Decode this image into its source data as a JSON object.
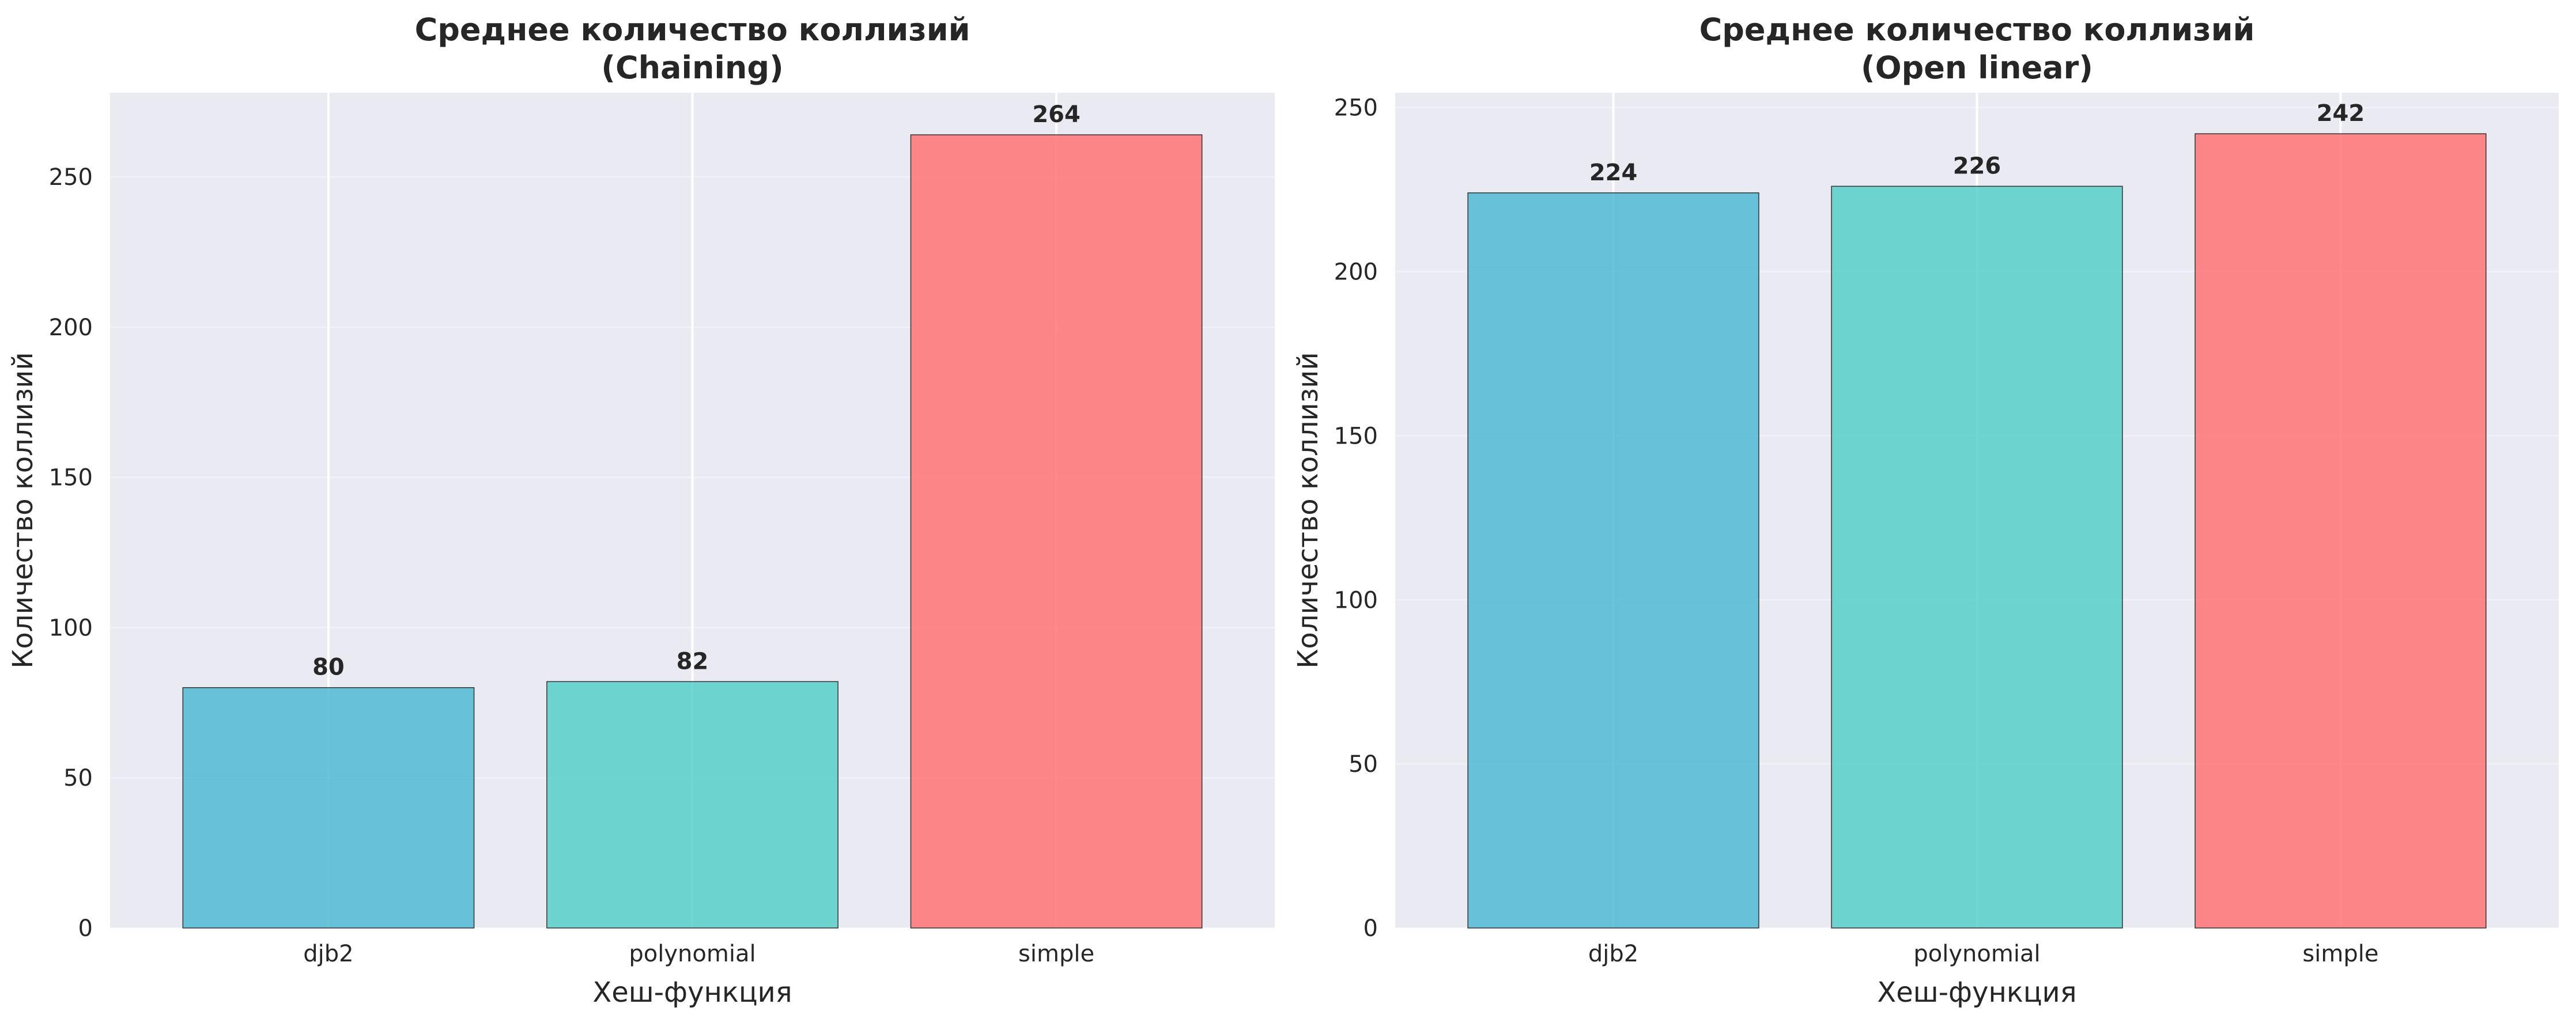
{
  "chart_data": [
    {
      "type": "bar",
      "title": [
        "Среднее количество коллизий",
        "(Chaining)"
      ],
      "xlabel": "Хеш-функция",
      "ylabel": "Количество коллизий",
      "categories": [
        "djb2",
        "polynomial",
        "simple"
      ],
      "values": [
        80,
        82,
        264
      ],
      "value_labels": [
        "80",
        "82",
        "264"
      ],
      "ylim": [
        0,
        278
      ],
      "yticks": [
        0,
        50,
        100,
        150,
        200,
        250
      ],
      "colors": [
        "#45b7d1",
        "#4ecdc4",
        "#ff6b6b"
      ],
      "grid": true
    },
    {
      "type": "bar",
      "title": [
        "Среднее количество коллизий",
        "(Open linear)"
      ],
      "xlabel": "Хеш-функция",
      "ylabel": "Количество коллизий",
      "categories": [
        "djb2",
        "polynomial",
        "simple"
      ],
      "values": [
        224,
        226,
        242
      ],
      "value_labels": [
        "224",
        "226",
        "242"
      ],
      "ylim": [
        0,
        254.5
      ],
      "yticks": [
        0,
        50,
        100,
        150,
        200,
        250
      ],
      "colors": [
        "#45b7d1",
        "#4ecdc4",
        "#ff6b6b"
      ],
      "grid": true
    }
  ]
}
